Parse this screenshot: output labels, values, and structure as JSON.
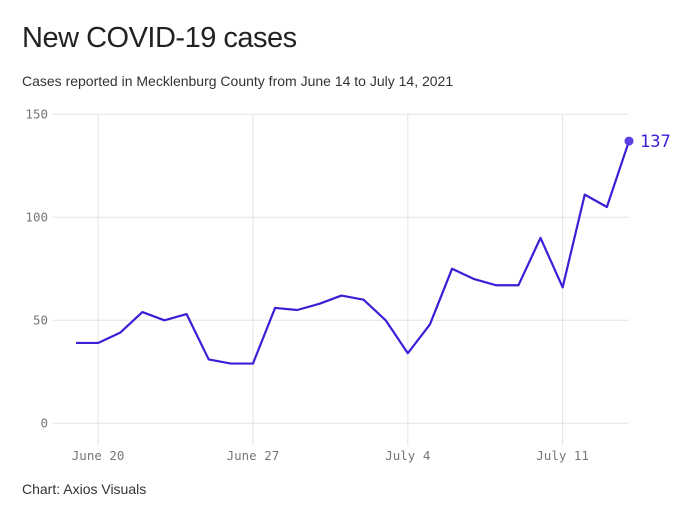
{
  "title": "New COVID-19 cases",
  "subtitle": "Cases reported in Mecklenburg County from June 14 to July 14, 2021",
  "footer": "Chart: Axios Visuals",
  "chart_data": {
    "type": "line",
    "title": "New COVID-19 cases",
    "xlabel": "",
    "ylabel": "",
    "ylim": [
      0,
      150
    ],
    "yticks": [
      "0",
      "50",
      "100",
      "150"
    ],
    "xticks": [
      "June 20",
      "June 27",
      "July 4",
      "July 11"
    ],
    "grid": true,
    "line_color": "#3a1fd6",
    "x": [
      "2021-06-19",
      "2021-06-20",
      "2021-06-21",
      "2021-06-22",
      "2021-06-23",
      "2021-06-24",
      "2021-06-25",
      "2021-06-26",
      "2021-06-27",
      "2021-06-28",
      "2021-06-29",
      "2021-06-30",
      "2021-07-01",
      "2021-07-02",
      "2021-07-03",
      "2021-07-04",
      "2021-07-05",
      "2021-07-06",
      "2021-07-07",
      "2021-07-08",
      "2021-07-09",
      "2021-07-10",
      "2021-07-11",
      "2021-07-12",
      "2021-07-13",
      "2021-07-14"
    ],
    "values": [
      39,
      39,
      44,
      54,
      50,
      53,
      31,
      29,
      29,
      56,
      55,
      58,
      62,
      60,
      50,
      34,
      48,
      75,
      70,
      67,
      67,
      90,
      66,
      111,
      105,
      137
    ],
    "end_label": "137"
  }
}
